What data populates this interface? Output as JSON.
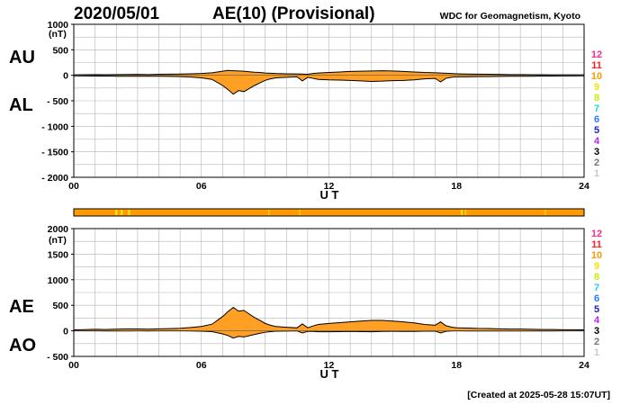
{
  "header": {
    "date": "2020/05/01",
    "title": "AE(10) (Provisional)",
    "source": "WDC for Geomagnetism, Kyoto"
  },
  "footer": {
    "created": "[Created at 2025-05-28 15:07UT]"
  },
  "colors": {
    "fill": "#ffa024",
    "grid": "#b4b4b4",
    "line": "#000000"
  },
  "station_count_legend": [
    {
      "label": "12",
      "color": "#ff2b8a"
    },
    {
      "label": "11",
      "color": "#ff2020"
    },
    {
      "label": "10",
      "color": "#ff9a00"
    },
    {
      "label": "9",
      "color": "#f5e600"
    },
    {
      "label": "8",
      "color": "#c4f000"
    },
    {
      "label": "7",
      "color": "#20d8d0"
    },
    {
      "label": "6",
      "color": "#2a78ff"
    },
    {
      "label": "5",
      "color": "#2020c0"
    },
    {
      "label": "4",
      "color": "#c020ff"
    },
    {
      "label": "3",
      "color": "#000000"
    },
    {
      "label": "2",
      "color": "#777777"
    },
    {
      "label": "1",
      "color": "#c8c8c8"
    }
  ],
  "chart_data": [
    {
      "type": "area",
      "xlabel": "U T",
      "ylabel": "(nT)",
      "xlim": [
        0,
        24
      ],
      "ylim": [
        -2000,
        1000
      ],
      "xticks": [
        0,
        6,
        12,
        18,
        24
      ],
      "xtick_labels": [
        "00",
        "06",
        "12",
        "18",
        "24"
      ],
      "yticks": [
        1000,
        500,
        0,
        -500,
        -1000,
        -1500,
        -2000
      ],
      "ytick_labels": [
        "1000",
        "500",
        "0",
        "- 500",
        "- 1000",
        "- 1500",
        "- 2000"
      ],
      "series_labels": [
        "AU",
        "AL"
      ],
      "x": [
        0,
        0.5,
        1,
        1.5,
        2,
        2.5,
        3,
        3.5,
        4,
        4.5,
        5,
        5.5,
        6,
        6.5,
        7,
        7.25,
        7.5,
        7.75,
        8,
        8.25,
        8.5,
        8.75,
        9,
        9.25,
        9.5,
        10,
        10.5,
        10.75,
        11,
        11.25,
        11.5,
        12,
        12.5,
        13,
        13.5,
        14,
        14.5,
        15,
        15.5,
        16,
        16.5,
        17,
        17.25,
        17.5,
        17.75,
        18,
        18.5,
        19,
        19.5,
        20,
        20.5,
        21,
        21.5,
        22,
        22.5,
        23,
        23.5,
        24
      ],
      "series": [
        {
          "name": "AU",
          "values": [
            10,
            12,
            15,
            12,
            14,
            16,
            18,
            15,
            20,
            22,
            25,
            30,
            35,
            50,
            80,
            95,
            90,
            85,
            80,
            70,
            60,
            55,
            45,
            40,
            35,
            30,
            28,
            25,
            20,
            35,
            45,
            55,
            65,
            75,
            80,
            85,
            90,
            85,
            75,
            65,
            55,
            50,
            45,
            40,
            35,
            30,
            25,
            22,
            20,
            18,
            15,
            14,
            12,
            12,
            10,
            10,
            10,
            10
          ]
        },
        {
          "name": "AL",
          "values": [
            -10,
            -12,
            -15,
            -15,
            -18,
            -20,
            -20,
            -18,
            -20,
            -22,
            -25,
            -35,
            -50,
            -80,
            -200,
            -280,
            -370,
            -300,
            -320,
            -260,
            -200,
            -150,
            -100,
            -70,
            -50,
            -40,
            -30,
            -110,
            -40,
            -60,
            -80,
            -90,
            -95,
            -100,
            -110,
            -120,
            -115,
            -105,
            -100,
            -90,
            -70,
            -60,
            -130,
            -60,
            -40,
            -30,
            -30,
            -25,
            -25,
            -22,
            -20,
            -20,
            -18,
            -15,
            -15,
            -12,
            -12,
            -10
          ]
        }
      ]
    },
    {
      "type": "area",
      "xlabel": "U T",
      "ylabel": "(nT)",
      "xlim": [
        0,
        24
      ],
      "ylim": [
        -500,
        2000
      ],
      "xticks": [
        0,
        6,
        12,
        18,
        24
      ],
      "xtick_labels": [
        "00",
        "06",
        "12",
        "18",
        "24"
      ],
      "yticks": [
        2000,
        1500,
        1000,
        500,
        0,
        -500
      ],
      "ytick_labels": [
        "2000",
        "1500",
        "1000",
        "500",
        "0",
        "- 500"
      ],
      "series_labels": [
        "AE",
        "AO"
      ],
      "x": [
        0,
        0.5,
        1,
        1.5,
        2,
        2.5,
        3,
        3.5,
        4,
        4.5,
        5,
        5.5,
        6,
        6.5,
        7,
        7.25,
        7.5,
        7.75,
        8,
        8.25,
        8.5,
        8.75,
        9,
        9.25,
        9.5,
        10,
        10.5,
        10.75,
        11,
        11.25,
        11.5,
        12,
        12.5,
        13,
        13.5,
        14,
        14.5,
        15,
        15.5,
        16,
        16.5,
        17,
        17.25,
        17.5,
        17.75,
        18,
        18.5,
        19,
        19.5,
        20,
        20.5,
        21,
        21.5,
        22,
        22.5,
        23,
        23.5,
        24
      ],
      "series": [
        {
          "name": "AE",
          "values": [
            20,
            24,
            30,
            27,
            32,
            36,
            38,
            33,
            40,
            44,
            50,
            65,
            85,
            130,
            280,
            375,
            460,
            385,
            400,
            330,
            260,
            205,
            145,
            110,
            85,
            70,
            58,
            135,
            60,
            95,
            125,
            145,
            160,
            175,
            190,
            205,
            205,
            190,
            175,
            155,
            125,
            110,
            175,
            100,
            75,
            60,
            55,
            47,
            45,
            40,
            35,
            34,
            30,
            27,
            25,
            22,
            22,
            20
          ]
        },
        {
          "name": "AO",
          "values": [
            0,
            0,
            0,
            -2,
            -2,
            -2,
            -1,
            -2,
            0,
            0,
            0,
            -3,
            -8,
            -15,
            -60,
            -92,
            -140,
            -108,
            -120,
            -95,
            -70,
            -48,
            -28,
            -15,
            -8,
            -5,
            -1,
            -42,
            -10,
            -12,
            -18,
            -18,
            -15,
            -12,
            -15,
            -18,
            -12,
            -10,
            -12,
            -12,
            -8,
            -5,
            -42,
            -10,
            -2,
            0,
            -2,
            -2,
            -2,
            -2,
            -2,
            -3,
            -3,
            -2,
            -2,
            -1,
            -1,
            0
          ]
        }
      ]
    }
  ],
  "station_count_bar": {
    "default_count_label": "10",
    "segments": [
      {
        "from": 1.95,
        "to": 2.05,
        "label": "9"
      },
      {
        "from": 2.2,
        "to": 2.3,
        "label": "9"
      },
      {
        "from": 2.55,
        "to": 2.65,
        "label": "9"
      },
      {
        "from": 9.15,
        "to": 9.2,
        "label": "9"
      },
      {
        "from": 10.6,
        "to": 10.65,
        "label": "9"
      },
      {
        "from": 18.2,
        "to": 18.28,
        "label": "9"
      },
      {
        "from": 18.4,
        "to": 18.45,
        "label": "9"
      },
      {
        "from": 22.15,
        "to": 22.2,
        "label": "9"
      }
    ]
  }
}
